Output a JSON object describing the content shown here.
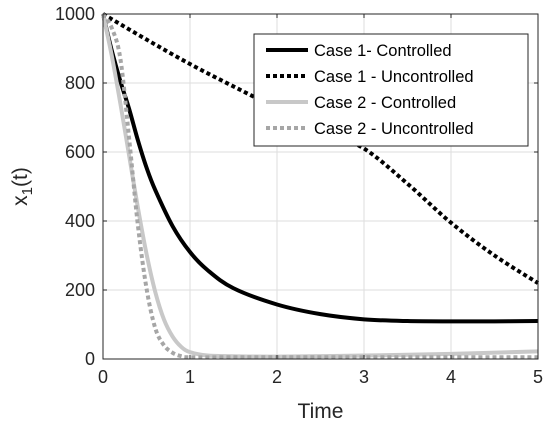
{
  "chart_data": {
    "type": "line",
    "xlabel": "Time",
    "ylabel": "x",
    "ylabel_subscript": "1",
    "ylabel_suffix": "(t)",
    "xlim": [
      0,
      5
    ],
    "ylim": [
      0,
      1000
    ],
    "xticks": [
      "0",
      "1",
      "2",
      "3",
      "4",
      "5"
    ],
    "yticks": [
      "0",
      "200",
      "400",
      "600",
      "800",
      "1000"
    ],
    "grid": true,
    "legend_position": "top-right",
    "series": [
      {
        "name": "Case 1- Controlled",
        "color": "#000000",
        "style": "solid",
        "x": [
          0,
          0.1,
          0.2,
          0.3,
          0.4,
          0.5,
          0.6,
          0.8,
          1.0,
          1.2,
          1.5,
          2.0,
          2.5,
          3.0,
          3.5,
          4.0,
          4.5,
          5.0
        ],
        "y": [
          1000,
          895,
          805,
          725,
          635,
          555,
          490,
          385,
          310,
          258,
          205,
          158,
          130,
          115,
          110,
          109,
          109,
          110
        ]
      },
      {
        "name": "Case 1 - Uncontrolled",
        "color": "#000000",
        "style": "dotted",
        "x": [
          0,
          0.5,
          1.0,
          1.5,
          2.0,
          2.5,
          3.0,
          3.5,
          4.0,
          4.5,
          5.0
        ],
        "y": [
          1000,
          926,
          855,
          790,
          727,
          667,
          610,
          508,
          395,
          300,
          220
        ]
      },
      {
        "name": "Case 2 - Controlled",
        "color": "#c8c8c8",
        "style": "solid",
        "x": [
          0,
          0.1,
          0.2,
          0.3,
          0.4,
          0.5,
          0.6,
          0.7,
          0.8,
          0.9,
          1.0,
          1.2,
          1.5,
          2.0,
          3.0,
          4.0,
          5.0
        ],
        "y": [
          1000,
          880,
          740,
          590,
          440,
          305,
          195,
          115,
          65,
          35,
          20,
          10,
          8,
          7,
          10,
          15,
          22
        ]
      },
      {
        "name": "Case 2 - Uncontrolled",
        "color": "#a6a6a6",
        "style": "dotted",
        "x": [
          0,
          0.1,
          0.2,
          0.3,
          0.4,
          0.5,
          0.6,
          0.7,
          0.8,
          0.9,
          1.0,
          1.5,
          2.0,
          3.0,
          4.0,
          5.0
        ],
        "y": [
          1000,
          960,
          870,
          640,
          390,
          205,
          90,
          40,
          18,
          8,
          5,
          5,
          5,
          5,
          5,
          5
        ]
      }
    ]
  }
}
